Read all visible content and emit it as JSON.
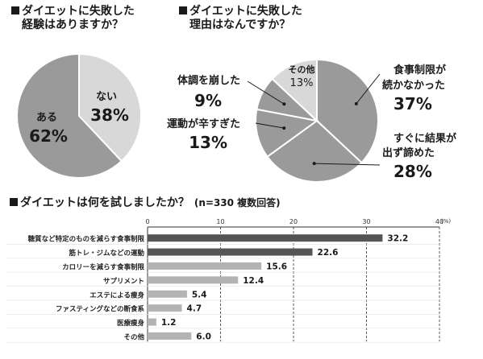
{
  "headings": {
    "q1_line1": "ダイエットに失敗した",
    "q1_line2": "経験はありますか？",
    "q2_line1": "ダイエットに失敗した",
    "q2_line2": "理由はなんですか？",
    "q3": "ダイエットは何を試しましたか？",
    "q3_note": "(n=330 複数回答)"
  },
  "colors": {
    "pie_dark": "#9a9a9a",
    "pie_light": "#d8d8d8",
    "pie_mid": "#b0b0b0",
    "bar_dark": "#555555",
    "bar_light": "#b3b3b3"
  },
  "chart_data": [
    {
      "type": "pie",
      "title": "ダイエットに失敗した経験はありますか？",
      "slices": [
        {
          "label": "ない",
          "value": 38,
          "value_label": "38%"
        },
        {
          "label": "ある",
          "value": 62,
          "value_label": "62%"
        }
      ]
    },
    {
      "type": "pie",
      "title": "ダイエットに失敗した理由はなんですか？",
      "slices": [
        {
          "label": "食事制限が続かなかった",
          "label_lines": [
            "食事制限が",
            "続かなかった"
          ],
          "value": 37,
          "value_label": "37%"
        },
        {
          "label": "すぐに結果が出ず諦めた",
          "label_lines": [
            "すぐに結果が",
            "出ず諦めた"
          ],
          "value": 28,
          "value_label": "28%"
        },
        {
          "label": "運動が辛すぎた",
          "label_lines": [
            "運動が辛すぎた"
          ],
          "value": 13,
          "value_label": "13%"
        },
        {
          "label": "体調を崩した",
          "label_lines": [
            "体調を崩した"
          ],
          "value": 9,
          "value_label": "9%"
        },
        {
          "label": "その他",
          "label_lines": [
            "その他"
          ],
          "value": 13,
          "value_label": "13%"
        }
      ]
    },
    {
      "type": "bar",
      "orientation": "horizontal",
      "title": "ダイエットは何を試しましたか？",
      "unit": "(%)",
      "xlim": [
        0,
        40
      ],
      "ticks": [
        0,
        10,
        20,
        30,
        40
      ],
      "categories": [
        "糖質など特定のものを減らす食事制限",
        "筋トレ・ジムなどの運動",
        "カロリーを減らす食事制限",
        "サプリメント",
        "エステによる痩身",
        "ファスティングなどの断食系",
        "医療痩身",
        "その他"
      ],
      "values": [
        32.2,
        22.6,
        15.6,
        12.4,
        5.4,
        4.7,
        1.2,
        6.0
      ],
      "value_labels": [
        "32.2",
        "22.6",
        "15.6",
        "12.4",
        "5.4",
        "4.7",
        "1.2",
        "6.0"
      ]
    }
  ]
}
